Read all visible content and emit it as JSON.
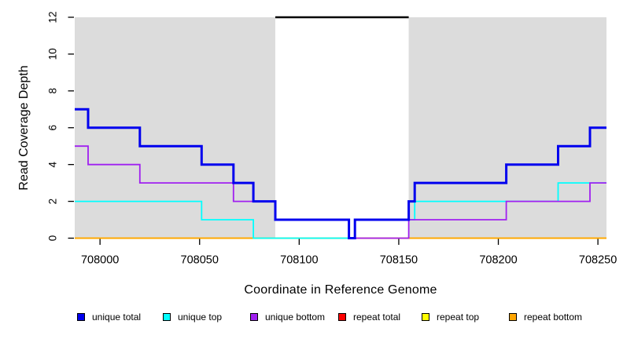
{
  "chart_data": {
    "type": "line",
    "subtype": "step",
    "title": "",
    "xlabel": "Coordinate in Reference Genome",
    "ylabel": "Read Coverage Depth",
    "x_range": [
      707987.3,
      708254.3
    ],
    "y_range": [
      0,
      12
    ],
    "x_ticks": [
      "708000",
      "708050",
      "708100",
      "708150",
      "708200",
      "708250"
    ],
    "x_tick_values": [
      708000,
      708050,
      708100,
      708150,
      708200,
      708250
    ],
    "y_ticks": [
      "0",
      "2",
      "4",
      "6",
      "8",
      "10",
      "12"
    ],
    "y_tick_values": [
      0,
      2,
      4,
      6,
      8,
      10,
      12
    ],
    "grid": false,
    "plot_background": "#DCDCDC",
    "unshaded_region": {
      "x_start": 708088,
      "x_end": 708155,
      "color": "#FFFFFF"
    },
    "top_marker": {
      "x_start": 708088,
      "x_end": 708155,
      "y": 12,
      "color": "#000000"
    },
    "series": [
      {
        "name": "repeat total",
        "color": "#FF0000",
        "line_width": 1.8,
        "points": [
          [
            707987.3,
            0
          ],
          [
            708254.3,
            0
          ]
        ]
      },
      {
        "name": "repeat top",
        "color": "#FFFF00",
        "line_width": 1.8,
        "points": [
          [
            707987.3,
            0
          ],
          [
            708254.3,
            0
          ]
        ]
      },
      {
        "name": "repeat bottom",
        "color": "#FFA500",
        "line_width": 1.8,
        "points": [
          [
            707987.3,
            0
          ],
          [
            708254.3,
            0
          ]
        ]
      },
      {
        "name": "unique top",
        "color": "#00FFFF",
        "line_width": 1.8,
        "points": [
          [
            707987.3,
            2
          ],
          [
            708051,
            1
          ],
          [
            708077,
            0
          ],
          [
            708128,
            1
          ],
          [
            708158,
            2
          ],
          [
            708230,
            3
          ],
          [
            708254.3,
            3
          ]
        ]
      },
      {
        "name": "unique bottom",
        "color": "#A020F0",
        "line_width": 1.8,
        "points": [
          [
            707987.3,
            5
          ],
          [
            707994,
            4
          ],
          [
            708020,
            3
          ],
          [
            708067,
            2
          ],
          [
            708088,
            1
          ],
          [
            708125,
            0
          ],
          [
            708155,
            1
          ],
          [
            708204,
            2
          ],
          [
            708246,
            3
          ],
          [
            708254.3,
            3
          ]
        ]
      },
      {
        "name": "unique total",
        "color": "#0000EE",
        "line_width": 3,
        "points": [
          [
            707987.3,
            7
          ],
          [
            707994,
            6
          ],
          [
            708020,
            5
          ],
          [
            708051,
            4
          ],
          [
            708067,
            3
          ],
          [
            708077,
            2
          ],
          [
            708088,
            1
          ],
          [
            708125,
            0
          ],
          [
            708128,
            1
          ],
          [
            708155,
            2
          ],
          [
            708158,
            3
          ],
          [
            708204,
            4
          ],
          [
            708230,
            5
          ],
          [
            708246,
            6
          ],
          [
            708254.3,
            6
          ]
        ]
      }
    ],
    "legend": [
      {
        "label": "unique total",
        "color": "#0000EE"
      },
      {
        "label": "unique top",
        "color": "#00FFFF"
      },
      {
        "label": "unique bottom",
        "color": "#A020F0"
      },
      {
        "label": "repeat total",
        "color": "#FF0000"
      },
      {
        "label": "repeat top",
        "color": "#FFFF00"
      },
      {
        "label": "repeat bottom",
        "color": "#FFA500"
      }
    ],
    "legend_position": "bottom"
  }
}
